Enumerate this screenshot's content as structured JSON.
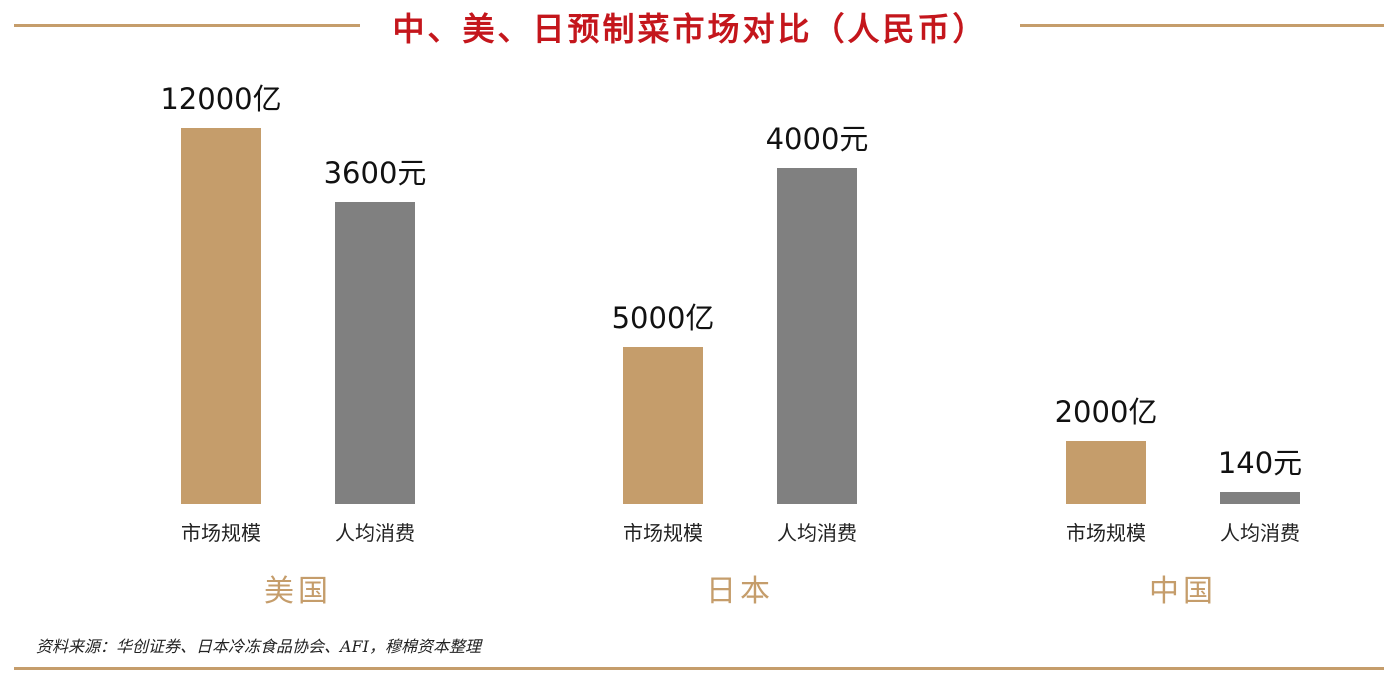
{
  "title": "中、美、日预制菜市场对比（人民币）",
  "source": "资料来源：华创证券、日本冷冻食品协会、AFI，穆棉资本整理",
  "colors": {
    "rule": "#c59d6b",
    "title": "#c4161c",
    "market_bar": "#c59d6b",
    "percapita_bar": "#808080",
    "group_label": "#c59d6b"
  },
  "chart_data": {
    "type": "bar",
    "title": "中、美、日预制菜市场对比（人民币）",
    "groups": [
      {
        "name": "美国",
        "bars": [
          {
            "category": "市场规模",
            "value": 12000,
            "unit": "亿",
            "label": "12000亿"
          },
          {
            "category": "人均消费",
            "value": 3600,
            "unit": "元",
            "label": "3600元"
          }
        ]
      },
      {
        "name": "日本",
        "bars": [
          {
            "category": "市场规模",
            "value": 5000,
            "unit": "亿",
            "label": "5000亿"
          },
          {
            "category": "人均消费",
            "value": 4000,
            "unit": "元",
            "label": "4000元"
          }
        ]
      },
      {
        "name": "中国",
        "bars": [
          {
            "category": "市场规模",
            "value": 2000,
            "unit": "亿",
            "label": "2000亿"
          },
          {
            "category": "人均消费",
            "value": 140,
            "unit": "元",
            "label": "140元"
          }
        ]
      }
    ],
    "grid": false,
    "legend": "none"
  }
}
